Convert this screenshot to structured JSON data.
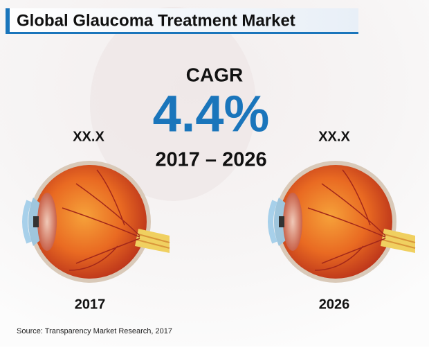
{
  "header": {
    "title": "Global Glaucoma Treatment Market"
  },
  "cagr": {
    "label": "CAGR",
    "value": "4.4%",
    "period": "2017 – 2026"
  },
  "left": {
    "value": "XX.X",
    "year": "2017"
  },
  "right": {
    "value": "XX.X",
    "year": "2026"
  },
  "source": "Source: Transparency Market Research, 2017"
}
